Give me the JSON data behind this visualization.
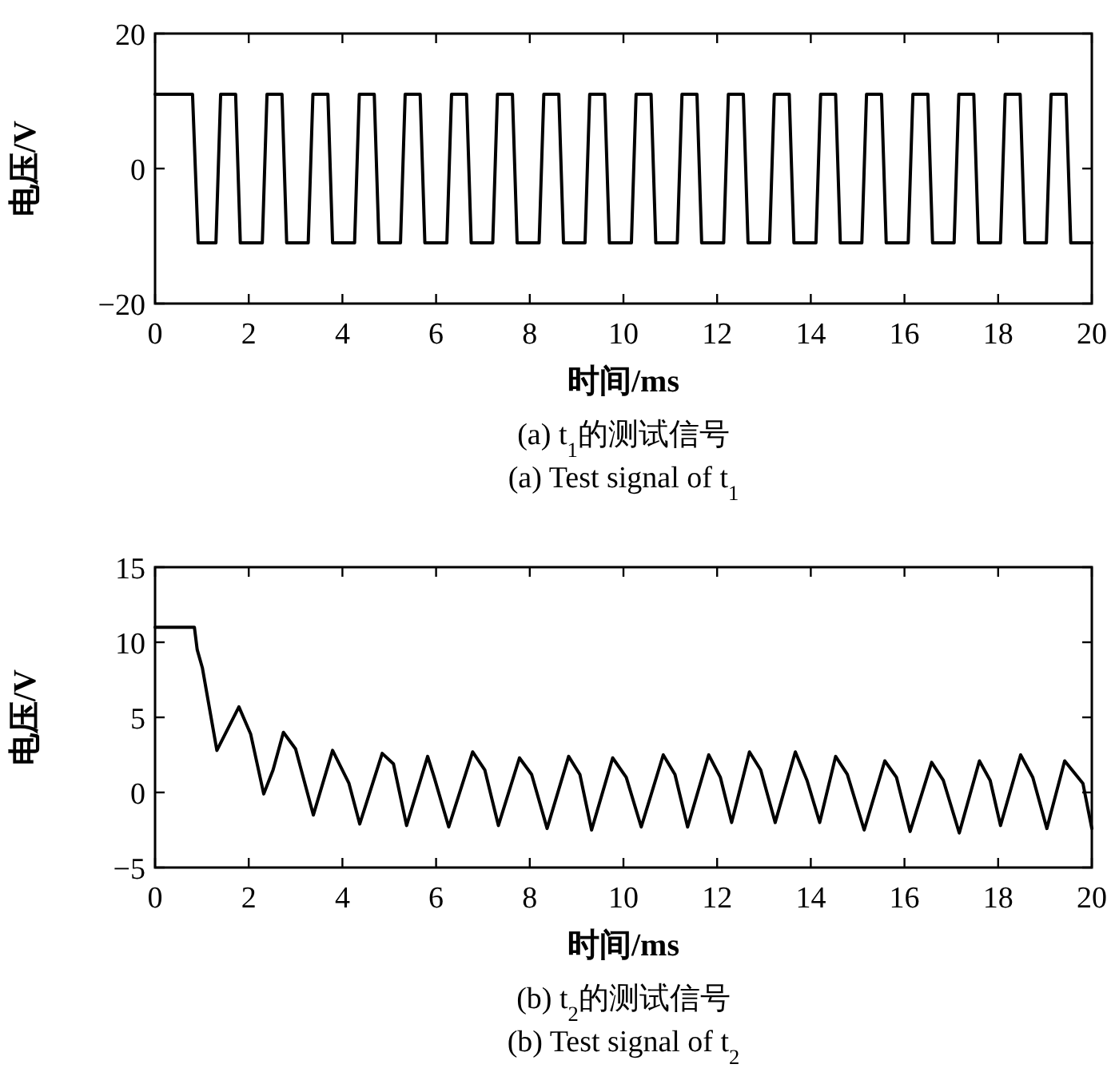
{
  "chart_data": [
    {
      "type": "line",
      "xlabel": "时间/ms",
      "ylabel": "电压/V",
      "annotations": [
        "(a) t$_{1}$的测试信号",
        "(a) Test signal of t$_{1}$"
      ],
      "xlim": [
        0,
        20
      ],
      "ylim": [
        -20,
        20
      ],
      "xticks": [
        0,
        2,
        4,
        6,
        8,
        10,
        12,
        14,
        16,
        18,
        20
      ],
      "yticks": [
        -20,
        0,
        20
      ],
      "grid": false,
      "series": [
        {
          "color": "#000000",
          "x": [
            0,
            0.8,
            0.92,
            1.3,
            1.4,
            1.72,
            1.82,
            2.29,
            2.39,
            2.71,
            2.81,
            3.27,
            3.37,
            3.69,
            3.79,
            4.26,
            4.36,
            4.68,
            4.78,
            5.24,
            5.34,
            5.66,
            5.76,
            6.23,
            6.33,
            6.65,
            6.75,
            7.21,
            7.31,
            7.63,
            7.73,
            8.2,
            8.3,
            8.62,
            8.72,
            9.18,
            9.28,
            9.6,
            9.7,
            10.17,
            10.27,
            10.59,
            10.69,
            11.15,
            11.25,
            11.57,
            11.67,
            12.14,
            12.24,
            12.56,
            12.66,
            13.12,
            13.22,
            13.54,
            13.64,
            14.11,
            14.21,
            14.53,
            14.63,
            15.09,
            15.19,
            15.51,
            15.61,
            16.08,
            16.18,
            16.5,
            16.6,
            17.06,
            17.16,
            17.48,
            17.58,
            18.05,
            18.15,
            18.47,
            18.57,
            19.03,
            19.13,
            19.45,
            19.55,
            20
          ],
          "values": [
            11,
            11,
            -11,
            -11,
            11,
            11,
            -11,
            -11,
            11,
            11,
            -11,
            -11,
            11,
            11,
            -11,
            -11,
            11,
            11,
            -11,
            -11,
            11,
            11,
            -11,
            -11,
            11,
            11,
            -11,
            -11,
            11,
            11,
            -11,
            -11,
            11,
            11,
            -11,
            -11,
            11,
            11,
            -11,
            -11,
            11,
            11,
            -11,
            -11,
            11,
            11,
            -11,
            -11,
            11,
            11,
            -11,
            -11,
            11,
            11,
            -11,
            -11,
            11,
            11,
            -11,
            -11,
            11,
            11,
            -11,
            -11,
            11,
            11,
            -11,
            -11,
            11,
            11,
            -11,
            -11,
            11,
            11,
            -11,
            -11,
            11,
            11,
            -11,
            -11
          ]
        }
      ]
    },
    {
      "type": "line",
      "xlabel": "时间/ms",
      "ylabel": "电压/V",
      "annotations": [
        "(b) t$_{2}$的测试信号",
        "(b) Test signal of t$_{2}$"
      ],
      "xlim": [
        0,
        20
      ],
      "ylim": [
        -5,
        15
      ],
      "xticks": [
        0,
        2,
        4,
        6,
        8,
        10,
        12,
        14,
        16,
        18,
        20
      ],
      "yticks": [
        -5,
        0,
        5,
        10,
        15
      ],
      "grid": false,
      "series": [
        {
          "color": "#000000",
          "x": [
            0,
            0.84,
            0.9,
            1.01,
            1.32,
            1.79,
            2.04,
            2.32,
            2.52,
            2.74,
            3.0,
            3.38,
            3.79,
            4.14,
            4.37,
            4.85,
            5.09,
            5.37,
            5.82,
            5.96,
            6.27,
            6.78,
            7.04,
            7.33,
            7.78,
            8.04,
            8.37,
            8.83,
            9.07,
            9.32,
            9.77,
            10.06,
            10.38,
            10.85,
            11.1,
            11.37,
            11.82,
            12.07,
            12.31,
            12.69,
            12.93,
            13.24,
            13.67,
            13.92,
            14.19,
            14.53,
            14.78,
            15.14,
            15.58,
            15.83,
            16.12,
            16.58,
            16.83,
            17.17,
            17.6,
            17.83,
            18.05,
            18.48,
            18.74,
            19.04,
            19.42,
            19.81,
            20
          ],
          "values": [
            11,
            11,
            9.5,
            8.3,
            2.8,
            5.7,
            3.9,
            -0.1,
            1.5,
            4.0,
            2.9,
            -1.5,
            2.8,
            0.6,
            -2.1,
            2.6,
            1.9,
            -2.2,
            2.4,
            1.0,
            -2.3,
            2.7,
            1.5,
            -2.2,
            2.3,
            1.2,
            -2.4,
            2.4,
            1.2,
            -2.5,
            2.3,
            1.0,
            -2.3,
            2.5,
            1.2,
            -2.3,
            2.5,
            1.0,
            -2.0,
            2.7,
            1.5,
            -2.0,
            2.7,
            0.8,
            -2.0,
            2.4,
            1.2,
            -2.5,
            2.1,
            1.0,
            -2.6,
            2.0,
            0.8,
            -2.7,
            2.1,
            0.8,
            -2.2,
            2.5,
            1.0,
            -2.4,
            2.1,
            0.6,
            -2.4
          ]
        }
      ]
    }
  ]
}
